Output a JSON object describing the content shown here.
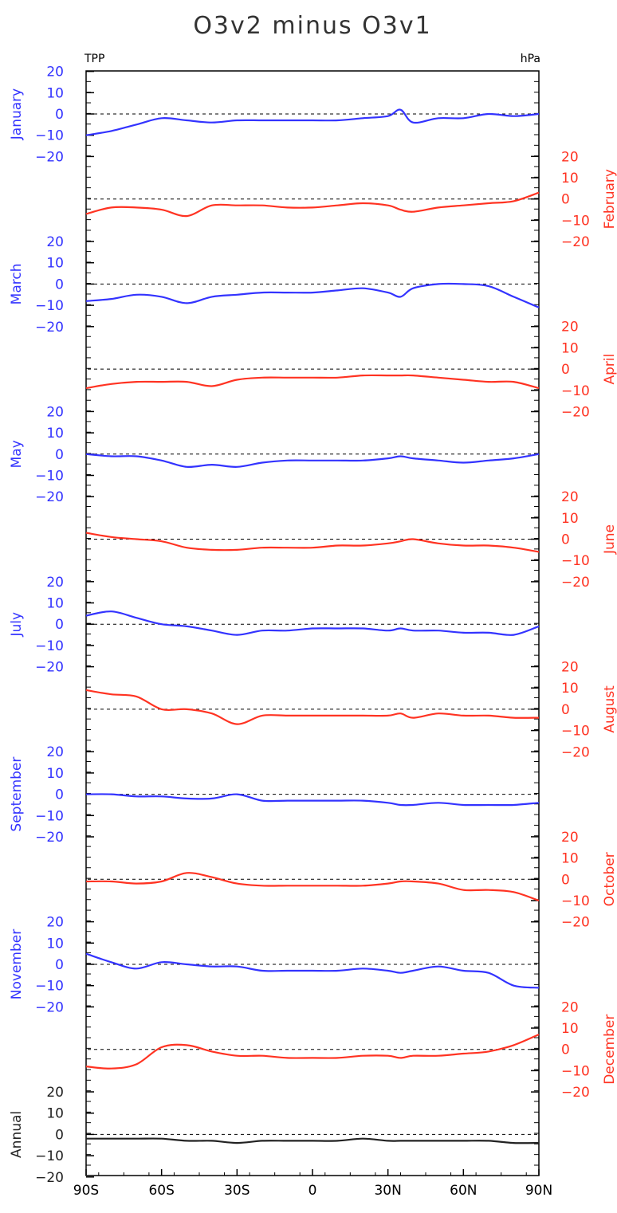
{
  "chart_data": {
    "type": "line",
    "title": "O3v2 minus O3v1",
    "corner_left": "TPP",
    "corner_right": "hPa",
    "x_ticks": [
      "90S",
      "60S",
      "30S",
      "0",
      "30N",
      "60N",
      "90N"
    ],
    "x_range": [
      -90,
      90
    ],
    "y_ticks": [
      20,
      10,
      0,
      -10,
      -20
    ],
    "y_tick_labels": [
      "20",
      "10",
      "0",
      "−10",
      "−20"
    ],
    "zero_line": "dashed",
    "colors": {
      "left": "#3333ff",
      "right": "#ff3322",
      "annual": "#222222"
    },
    "x": [
      -90,
      -80,
      -70,
      -60,
      -50,
      -40,
      -30,
      -20,
      -10,
      0,
      10,
      20,
      30,
      35,
      40,
      50,
      60,
      70,
      80,
      90
    ],
    "series": [
      {
        "name": "January",
        "axis": "left",
        "values": [
          -10,
          -8,
          -5,
          -2,
          -3,
          -4,
          -3,
          -3,
          -3,
          -3,
          -3,
          -2,
          -1,
          2,
          -4,
          -2,
          -2,
          0,
          -1,
          0
        ]
      },
      {
        "name": "February",
        "axis": "right",
        "values": [
          -7,
          -4,
          -4,
          -5,
          -8,
          -3,
          -3,
          -3,
          -4,
          -4,
          -3,
          -2,
          -3,
          -5,
          -6,
          -4,
          -3,
          -2,
          -1,
          3
        ]
      },
      {
        "name": "March",
        "axis": "left",
        "values": [
          -8,
          -7,
          -5,
          -6,
          -9,
          -6,
          -5,
          -4,
          -4,
          -4,
          -3,
          -2,
          -4,
          -6,
          -2,
          0,
          0,
          -1,
          -6,
          -11
        ]
      },
      {
        "name": "April",
        "axis": "right",
        "values": [
          -9,
          -7,
          -6,
          -6,
          -6,
          -8,
          -5,
          -4,
          -4,
          -4,
          -4,
          -3,
          -3,
          -3,
          -3,
          -4,
          -5,
          -6,
          -6,
          -9
        ]
      },
      {
        "name": "May",
        "axis": "left",
        "values": [
          0,
          -1,
          -1,
          -3,
          -6,
          -5,
          -6,
          -4,
          -3,
          -3,
          -3,
          -3,
          -2,
          -1,
          -2,
          -3,
          -4,
          -3,
          -2,
          0
        ]
      },
      {
        "name": "June",
        "axis": "right",
        "values": [
          3,
          1,
          0,
          -1,
          -4,
          -5,
          -5,
          -4,
          -4,
          -4,
          -3,
          -3,
          -2,
          -1,
          0,
          -2,
          -3,
          -3,
          -4,
          -6
        ]
      },
      {
        "name": "July",
        "axis": "left",
        "values": [
          4,
          6,
          3,
          0,
          -1,
          -3,
          -5,
          -3,
          -3,
          -2,
          -2,
          -2,
          -3,
          -2,
          -3,
          -3,
          -4,
          -4,
          -5,
          -1
        ]
      },
      {
        "name": "August",
        "axis": "right",
        "values": [
          9,
          7,
          6,
          0,
          0,
          -2,
          -7,
          -3,
          -3,
          -3,
          -3,
          -3,
          -3,
          -2,
          -4,
          -2,
          -3,
          -3,
          -4,
          -4
        ]
      },
      {
        "name": "September",
        "axis": "left",
        "values": [
          0,
          0,
          -1,
          -1,
          -2,
          -2,
          0,
          -3,
          -3,
          -3,
          -3,
          -3,
          -4,
          -5,
          -5,
          -4,
          -5,
          -5,
          -5,
          -4
        ]
      },
      {
        "name": "October",
        "axis": "right",
        "values": [
          -1,
          -1,
          -2,
          -1,
          3,
          1,
          -2,
          -3,
          -3,
          -3,
          -3,
          -3,
          -2,
          -1,
          -1,
          -2,
          -5,
          -5,
          -6,
          -10
        ]
      },
      {
        "name": "November",
        "axis": "left",
        "values": [
          5,
          1,
          -2,
          1,
          0,
          -1,
          -1,
          -3,
          -3,
          -3,
          -3,
          -2,
          -3,
          -4,
          -3,
          -1,
          -3,
          -4,
          -10,
          -11
        ]
      },
      {
        "name": "December",
        "axis": "right",
        "values": [
          -8,
          -9,
          -7,
          1,
          2,
          -1,
          -3,
          -3,
          -4,
          -4,
          -4,
          -3,
          -3,
          -4,
          -3,
          -3,
          -2,
          -1,
          2,
          7
        ]
      },
      {
        "name": "Annual",
        "axis": "left",
        "values": [
          -2,
          -2,
          -2,
          -2,
          -3,
          -3,
          -4,
          -3,
          -3,
          -3,
          -3,
          -2,
          -3,
          -3,
          -3,
          -3,
          -3,
          -3,
          -4,
          -4
        ]
      }
    ]
  }
}
